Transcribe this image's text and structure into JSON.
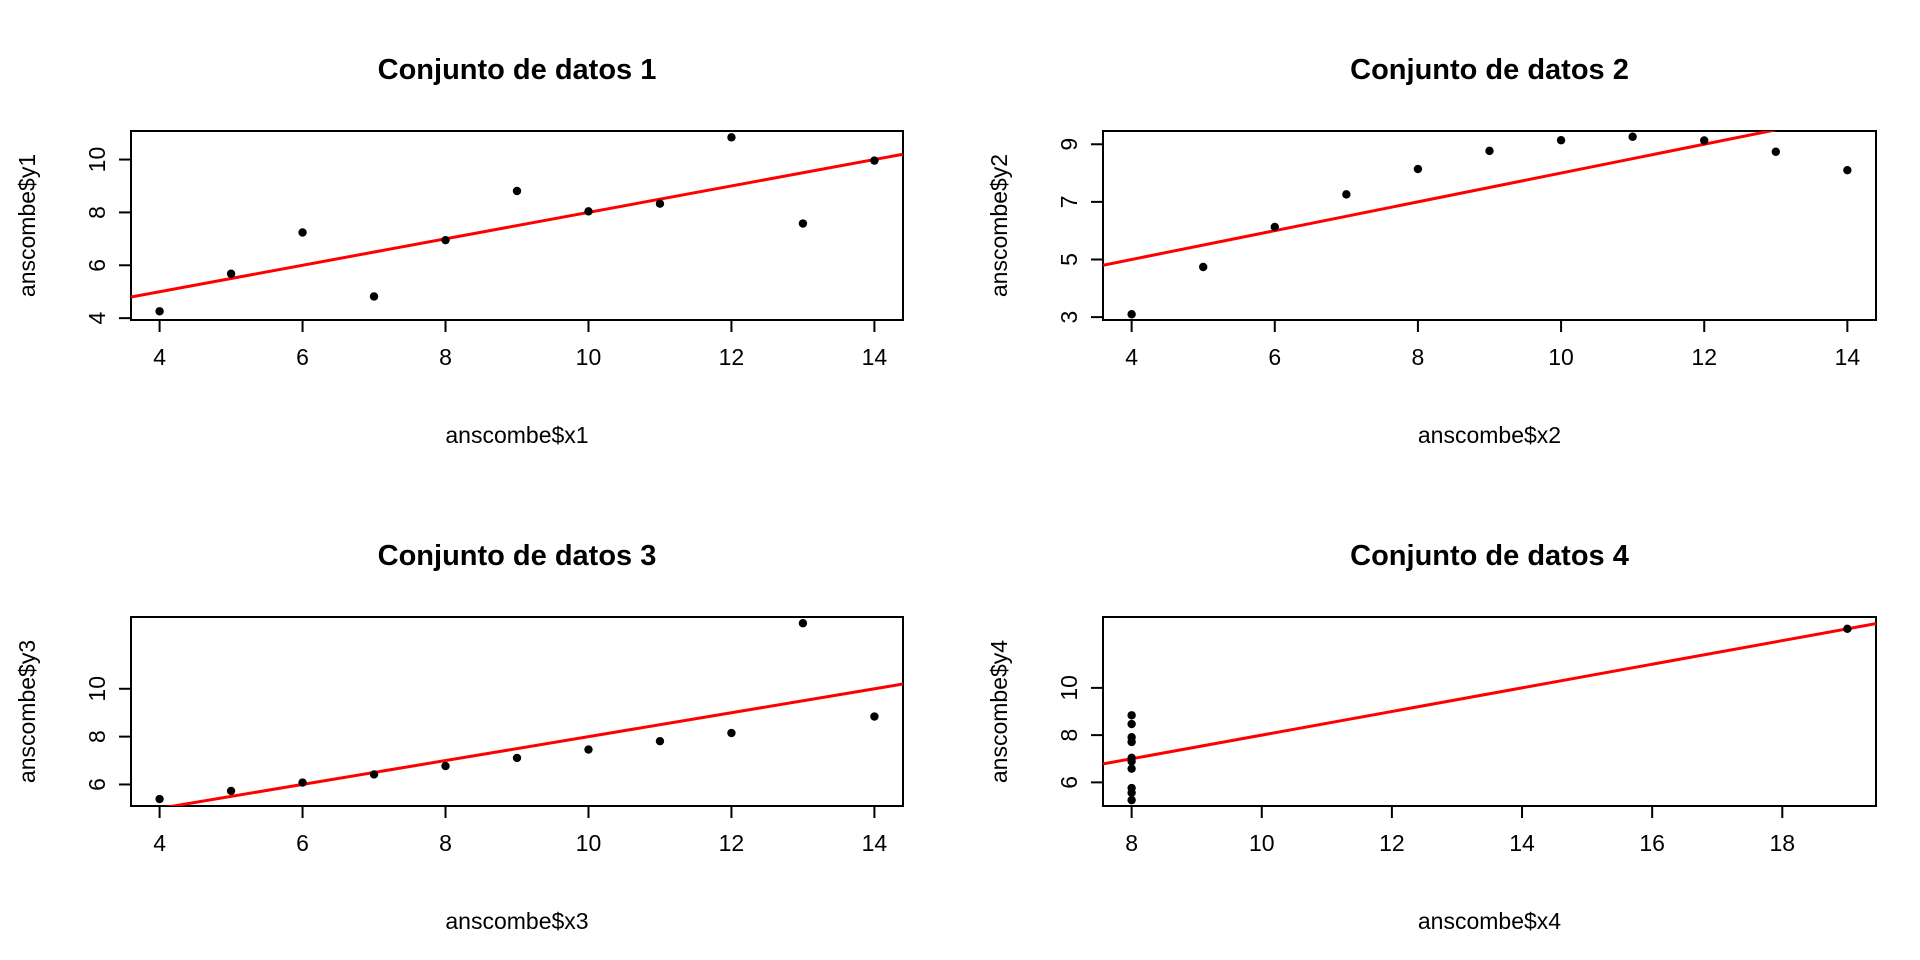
{
  "chart_data": [
    {
      "type": "scatter",
      "title": "Conjunto de datos 1",
      "xlabel": "anscombe$x1",
      "ylabel": "anscombe$y1",
      "xlim": [
        3.6,
        14.4
      ],
      "ylim": [
        3.93,
        11.08
      ],
      "xticks": [
        4,
        6,
        8,
        10,
        12,
        14
      ],
      "yticks": [
        4,
        6,
        8,
        10
      ],
      "x": [
        10,
        8,
        13,
        9,
        11,
        14,
        6,
        4,
        12,
        7,
        5
      ],
      "y": [
        8.04,
        6.95,
        7.58,
        8.81,
        8.33,
        9.96,
        7.24,
        4.26,
        10.84,
        4.82,
        5.68
      ],
      "fit_line": {
        "intercept": 3.0001,
        "slope": 0.5001,
        "color": "#ff0000"
      },
      "grid": false,
      "point_color": "#000000"
    },
    {
      "type": "scatter",
      "title": "Conjunto de datos 2",
      "xlabel": "anscombe$x2",
      "ylabel": "anscombe$y2",
      "xlim": [
        3.6,
        14.4
      ],
      "ylim": [
        2.9,
        9.46
      ],
      "xticks": [
        4,
        6,
        8,
        10,
        12,
        14
      ],
      "yticks": [
        3,
        5,
        7,
        9
      ],
      "x": [
        10,
        8,
        13,
        9,
        11,
        14,
        6,
        4,
        12,
        7,
        5
      ],
      "y": [
        9.14,
        8.14,
        8.74,
        8.77,
        9.26,
        8.1,
        6.13,
        3.1,
        9.13,
        7.26,
        4.74
      ],
      "fit_line": {
        "intercept": 3.0009,
        "slope": 0.5,
        "color": "#ff0000"
      },
      "grid": false,
      "point_color": "#000000"
    },
    {
      "type": "scatter",
      "title": "Conjunto de datos 3",
      "xlabel": "anscombe$x3",
      "ylabel": "anscombe$y3",
      "xlim": [
        3.6,
        14.4
      ],
      "ylim": [
        5.1,
        13.0
      ],
      "xticks": [
        4,
        6,
        8,
        10,
        12,
        14
      ],
      "yticks": [
        6,
        8,
        10
      ],
      "x": [
        10,
        8,
        13,
        9,
        11,
        14,
        6,
        4,
        12,
        7,
        5
      ],
      "y": [
        7.46,
        6.77,
        12.74,
        7.11,
        7.81,
        8.84,
        6.08,
        5.39,
        8.15,
        6.42,
        5.73
      ],
      "fit_line": {
        "intercept": 3.0025,
        "slope": 0.4997,
        "color": "#ff0000"
      },
      "grid": false,
      "point_color": "#000000"
    },
    {
      "type": "scatter",
      "title": "Conjunto de datos 4",
      "xlabel": "anscombe$x4",
      "ylabel": "anscombe$y4",
      "xlim": [
        7.56,
        19.44
      ],
      "ylim": [
        5.0,
        13.0
      ],
      "xticks": [
        8,
        10,
        12,
        14,
        16,
        18
      ],
      "yticks": [
        6,
        8,
        10
      ],
      "x": [
        8,
        8,
        8,
        8,
        8,
        8,
        8,
        19,
        8,
        8,
        8
      ],
      "y": [
        6.58,
        5.76,
        7.71,
        8.84,
        8.47,
        7.04,
        5.25,
        12.5,
        5.56,
        7.91,
        6.89
      ],
      "fit_line": {
        "intercept": 3.0017,
        "slope": 0.4999,
        "color": "#ff0000"
      },
      "grid": false,
      "point_color": "#000000"
    }
  ]
}
